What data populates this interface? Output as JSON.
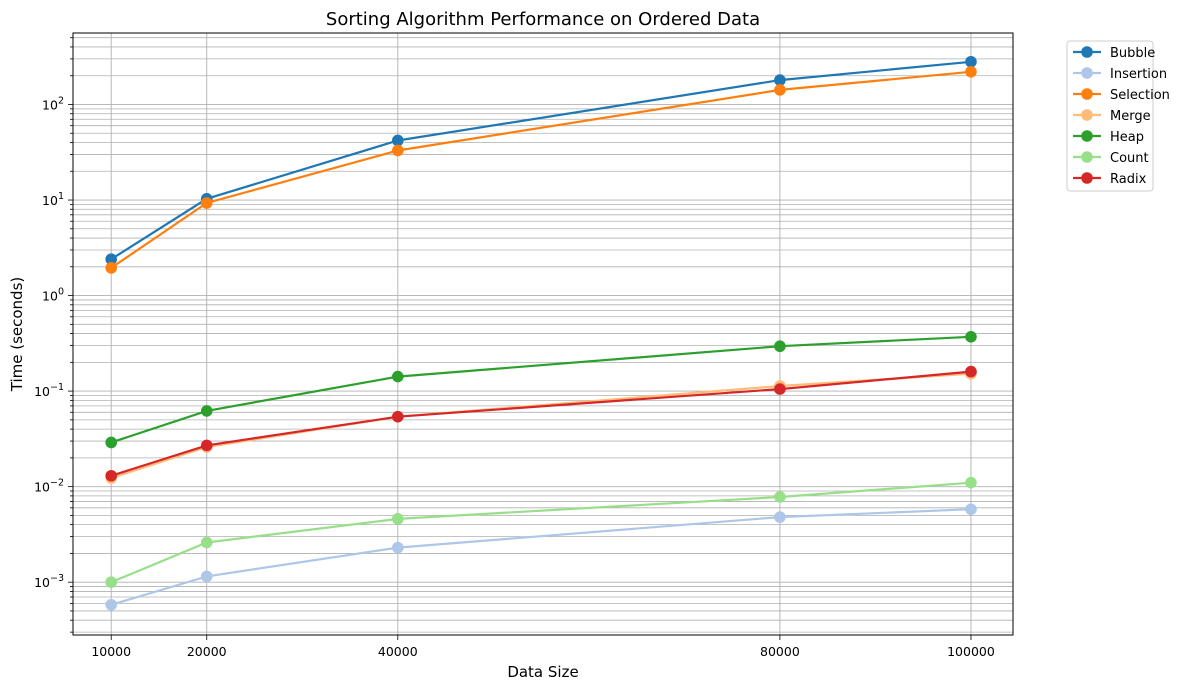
{
  "chart_data": {
    "type": "line",
    "title": "Sorting Algorithm Performance on Ordered Data",
    "xlabel": "Data Size",
    "ylabel": "Time (seconds)",
    "x": [
      10000,
      20000,
      40000,
      80000,
      100000
    ],
    "x_tick_labels": [
      "10000",
      "20000",
      "40000",
      "80000",
      "100000"
    ],
    "xlim": [
      6000,
      104400
    ],
    "y_scale": "log",
    "ylim": [
      0.00028,
      560
    ],
    "y_ticks": [
      {
        "value": 0.001,
        "base": "10",
        "exp": "−3"
      },
      {
        "value": 0.01,
        "base": "10",
        "exp": "−2"
      },
      {
        "value": 0.1,
        "base": "10",
        "exp": "−1"
      },
      {
        "value": 1,
        "base": "10",
        "exp": "0"
      },
      {
        "value": 10,
        "base": "10",
        "exp": "1"
      },
      {
        "value": 100,
        "base": "10",
        "exp": "2"
      }
    ],
    "grid": "major and minor",
    "legend_position": "outside-top-right",
    "series": [
      {
        "name": "Bubble",
        "color": "#1f77b4",
        "values": [
          2.4,
          10.3,
          42,
          180,
          280
        ]
      },
      {
        "name": "Insertion",
        "color": "#aec7e8",
        "values": [
          0.00058,
          0.00115,
          0.0023,
          0.0048,
          0.0058
        ]
      },
      {
        "name": "Selection",
        "color": "#ff7f0e",
        "values": [
          1.95,
          9.3,
          33,
          142,
          220
        ]
      },
      {
        "name": "Merge",
        "color": "#ffbb78",
        "values": [
          0.0123,
          0.026,
          0.054,
          0.113,
          0.152
        ]
      },
      {
        "name": "Heap",
        "color": "#2ca02c",
        "values": [
          0.029,
          0.062,
          0.142,
          0.295,
          0.37
        ]
      },
      {
        "name": "Count",
        "color": "#98df8a",
        "values": [
          0.001,
          0.0026,
          0.0046,
          0.0078,
          0.011
        ]
      },
      {
        "name": "Radix",
        "color": "#d62728",
        "values": [
          0.013,
          0.027,
          0.054,
          0.105,
          0.16
        ]
      }
    ]
  }
}
